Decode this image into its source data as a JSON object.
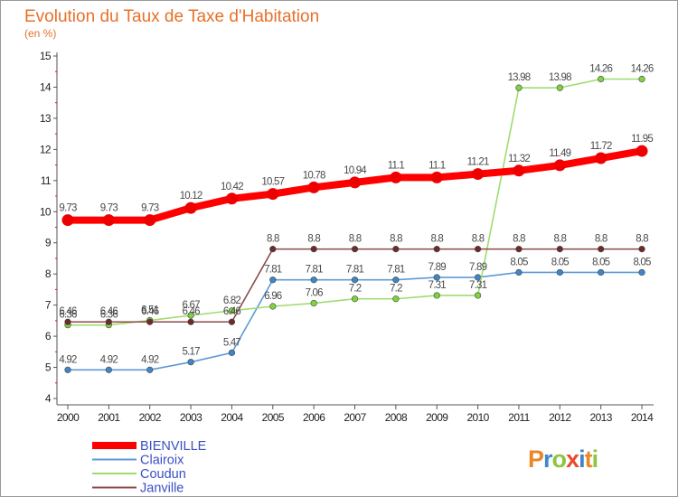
{
  "chart_data": {
    "type": "line",
    "title": "Evolution du Taux de Taxe d'Habitation",
    "subtitle": "(en %)",
    "categories": [
      "2000",
      "2001",
      "2002",
      "2003",
      "2004",
      "2005",
      "2006",
      "2007",
      "2008",
      "2009",
      "2010",
      "2011",
      "2012",
      "2013",
      "2014"
    ],
    "ylim": [
      4,
      15
    ],
    "yticks": [
      4,
      5,
      6,
      7,
      8,
      9,
      10,
      11,
      12,
      13,
      14,
      15
    ],
    "grid": false,
    "legend": "bottom-left",
    "series": [
      {
        "name": "Clairoix",
        "color": "#5b9bd5",
        "point_color": "#3f86c6",
        "values": [
          4.92,
          4.92,
          4.92,
          5.17,
          5.47,
          7.81,
          7.81,
          7.81,
          7.81,
          7.89,
          7.89,
          8.05,
          8.05,
          8.05,
          8.05
        ],
        "labels": [
          "4.92",
          "4.92",
          "4.92",
          "5.17",
          "5.47",
          "7.81",
          "7.81",
          "7.81",
          "7.81",
          "7.89",
          "7.89",
          "8.05",
          "8.05",
          "8.05",
          "8.05"
        ]
      },
      {
        "name": "Coudun",
        "color": "#9fdc70",
        "point_color": "#7ed43e",
        "values": [
          6.36,
          6.36,
          6.51,
          6.67,
          6.82,
          6.96,
          7.06,
          7.2,
          7.2,
          7.31,
          7.31,
          13.98,
          13.98,
          14.26,
          14.26
        ],
        "labels": [
          "6.36",
          "6.36",
          "6.51",
          "6.67",
          "6.82",
          "6.96",
          "7.06",
          "7.2",
          "7.2",
          "7.31",
          "7.31",
          "13.98",
          "13.98",
          "14.26",
          "14.26"
        ]
      },
      {
        "name": "Janville",
        "color": "#8b4a4a",
        "point_color": "#6e2b2b",
        "values": [
          6.46,
          6.46,
          6.46,
          6.46,
          6.46,
          8.8,
          8.8,
          8.8,
          8.8,
          8.8,
          8.8,
          8.8,
          8.8,
          8.8,
          8.8
        ],
        "labels": [
          "6.46",
          "6.46",
          "6.46",
          "6.46",
          "6.46",
          "8.8",
          "8.8",
          "8.8",
          "8.8",
          "8.8",
          "8.8",
          "8.8",
          "8.8",
          "8.8",
          "8.8"
        ]
      },
      {
        "name": "BIENVILLE",
        "color": "#ff0000",
        "point_color": "#ee0000",
        "values": [
          9.73,
          9.73,
          9.73,
          10.12,
          10.42,
          10.57,
          10.78,
          10.94,
          11.1,
          11.1,
          11.21,
          11.32,
          11.49,
          11.72,
          11.95
        ],
        "labels": [
          "9.73",
          "9.73",
          "9.73",
          "10.12",
          "10.42",
          "10.57",
          "10.78",
          "10.94",
          "11.1",
          "11.1",
          "11.21",
          "11.32",
          "11.49",
          "11.72",
          "11.95"
        ]
      }
    ],
    "legend_order": [
      "BIENVILLE",
      "Clairoix",
      "Coudun",
      "Janville"
    ],
    "legend_text_color": "#3b4fc4"
  },
  "logo": {
    "text": "Proxiti"
  }
}
